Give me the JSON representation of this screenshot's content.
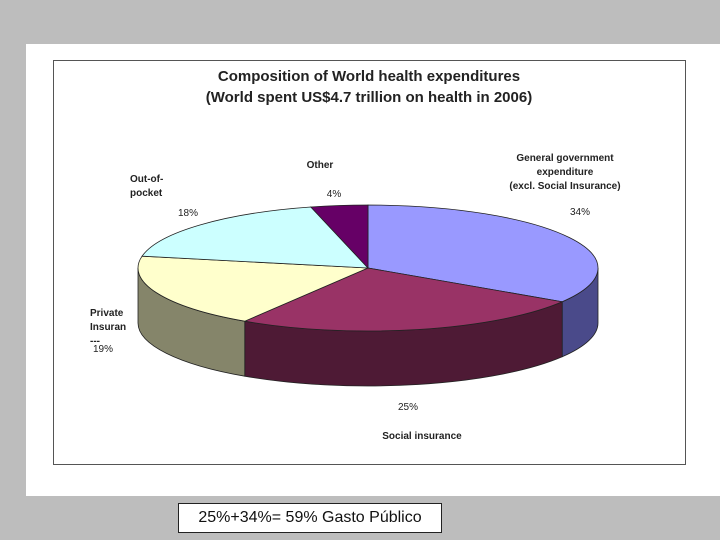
{
  "caption": "25%+34%= 59% Gasto Público",
  "chart_data": {
    "type": "pie",
    "title": "Composition of World health expenditures",
    "subtitle": "(World spent US$4.7 trillion on health in 2006)",
    "slices": [
      {
        "label_lines": [
          "General government",
          "expenditure",
          "(excl. Social Insurance)"
        ],
        "percent_label": "34%",
        "value": 34,
        "color": "#9999ff",
        "side_color": "#4a4a8a"
      },
      {
        "label_lines": [
          "Social insurance"
        ],
        "percent_label": "25%",
        "value": 25,
        "color": "#993366",
        "side_color": "#4e1a35"
      },
      {
        "label_lines": [
          "Private",
          "Insuran",
          "---"
        ],
        "percent_label": "19%",
        "value": 19,
        "color": "#ffffcc",
        "side_color": "#85856a"
      },
      {
        "label_lines": [
          "Out-of-",
          "pocket"
        ],
        "percent_label": "18%",
        "value": 18,
        "color": "#ccffff",
        "side_color": "#6a8585"
      },
      {
        "label_lines": [
          "Other"
        ],
        "percent_label": "4%",
        "value": 4,
        "color": "#660066",
        "side_color": "#330033"
      }
    ]
  }
}
